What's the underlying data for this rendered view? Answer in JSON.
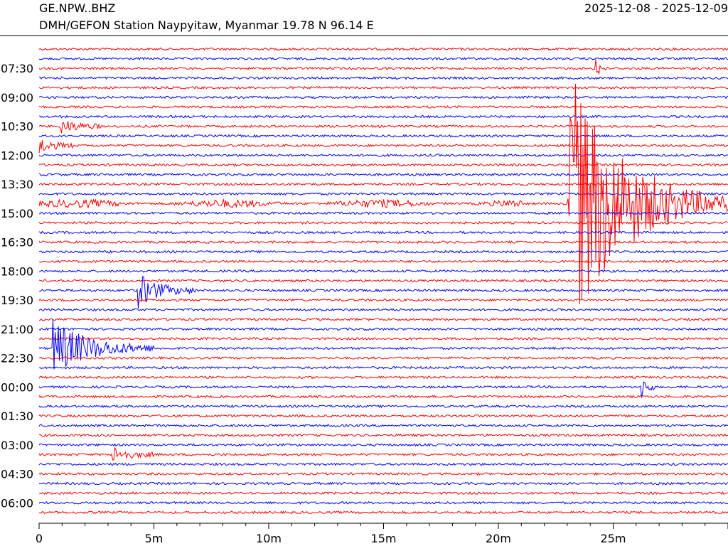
{
  "header": {
    "station_code": "GE.NPW..BHZ",
    "station_desc": "DMH/GEFON Station Naypyitaw, Myanmar  19.78 N 96.14 E",
    "date_range": "2025-12-08 - 2025-12-09"
  },
  "chart_data": {
    "type": "line",
    "title": "",
    "xlabel": "",
    "ylabel": "",
    "xlim": [
      0,
      30
    ],
    "x_ticks": [
      {
        "value": 0,
        "label": "0"
      },
      {
        "value": 5,
        "label": "5m"
      },
      {
        "value": 10,
        "label": "10m"
      },
      {
        "value": 15,
        "label": "15m"
      },
      {
        "value": 20,
        "label": "20m"
      },
      {
        "value": 25,
        "label": "25m"
      }
    ],
    "y_tick_labels": [
      "07:30",
      "09:00",
      "10:30",
      "12:00",
      "13:30",
      "15:00",
      "16:30",
      "18:00",
      "19:30",
      "21:00",
      "22:30",
      "00:00",
      "01:30",
      "03:00",
      "04:30",
      "06:00"
    ],
    "trace_count": 49,
    "trace_colors": [
      "#ff0000",
      "#0000ff"
    ],
    "grid": false,
    "events": [
      {
        "trace": 2,
        "start_min": 24.2,
        "duration_min": 0.5,
        "amplitude": "medium"
      },
      {
        "trace": 8,
        "start_min": 0.9,
        "duration_min": 1.8,
        "amplitude": "small"
      },
      {
        "trace": 10,
        "start_min": 0.0,
        "duration_min": 1.5,
        "amplitude": "small"
      },
      {
        "trace": 16,
        "start_min": 0.0,
        "duration_min": 21.0,
        "amplitude": "surface-wave"
      },
      {
        "trace": 16,
        "start_min": 23.0,
        "duration_min": 7.0,
        "amplitude": "very-large"
      },
      {
        "trace": 25,
        "start_min": 4.3,
        "duration_min": 2.5,
        "amplitude": "medium"
      },
      {
        "trace": 31,
        "start_min": 0.6,
        "duration_min": 4.5,
        "amplitude": "large"
      },
      {
        "trace": 35,
        "start_min": 26.2,
        "duration_min": 0.6,
        "amplitude": "medium"
      },
      {
        "trace": 42,
        "start_min": 3.2,
        "duration_min": 1.8,
        "amplitude": "small"
      }
    ]
  }
}
